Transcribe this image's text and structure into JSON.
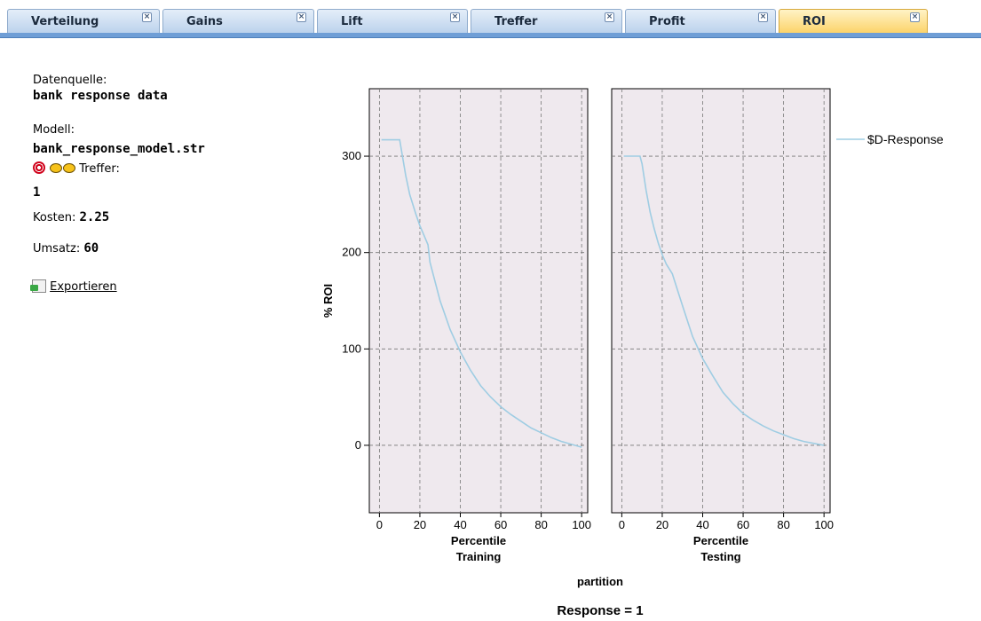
{
  "tabs": [
    {
      "label": "Verteilung",
      "active": false
    },
    {
      "label": "Gains",
      "active": false
    },
    {
      "label": "Lift",
      "active": false
    },
    {
      "label": "Treffer",
      "active": false
    },
    {
      "label": "Profit",
      "active": false
    },
    {
      "label": "ROI",
      "active": true
    }
  ],
  "tab_close_glyph": "×",
  "info": {
    "source_label": "Datenquelle:",
    "source_value": "bank response data",
    "model_label": "Modell:",
    "model_value": "bank_response_model.str",
    "hit_label": "Treffer:",
    "hit_value": "1",
    "cost_label": "Kosten:",
    "cost_value": "2.25",
    "revenue_label": "Umsatz:",
    "revenue_value": "60",
    "export_label": "Exportieren"
  },
  "icons": {
    "target": "target-icon",
    "glasses": "glasses-icon",
    "export": "export-icon"
  },
  "colors": {
    "line": "#9fcde3",
    "plot_bg": "#efe9ee",
    "tab_active": "#fcd36a",
    "tab_inactive": "#bcd2ec"
  },
  "chart_data": {
    "type": "line",
    "ylabel": "% ROI",
    "ylim": [
      -70,
      370
    ],
    "yticks": [
      0,
      100,
      200,
      300
    ],
    "xlim": [
      -5,
      103
    ],
    "xticks": [
      0,
      20,
      40,
      60,
      80,
      100
    ],
    "grid": true,
    "legend_position": "right",
    "xaxis_group_label": "partition",
    "footer": "Response = 1",
    "series_name": "$D-Response",
    "panels": [
      {
        "name": "Training",
        "xlabel": "Percentile",
        "x": [
          1,
          5,
          10,
          11,
          13,
          15,
          18,
          20,
          22,
          24,
          25,
          30,
          35,
          40,
          45,
          50,
          55,
          60,
          65,
          70,
          75,
          80,
          85,
          90,
          95,
          100
        ],
        "y": [
          317,
          317,
          317,
          305,
          280,
          260,
          240,
          228,
          218,
          208,
          190,
          150,
          120,
          97,
          78,
          62,
          50,
          40,
          32,
          25,
          18,
          13,
          8,
          4,
          1,
          -2
        ]
      },
      {
        "name": "Testing",
        "xlabel": "Percentile",
        "x": [
          1,
          5,
          9,
          10,
          12,
          14,
          16,
          18,
          20,
          22,
          25,
          30,
          35,
          40,
          45,
          50,
          55,
          60,
          65,
          70,
          75,
          80,
          85,
          90,
          95,
          100
        ],
        "y": [
          300,
          300,
          300,
          292,
          265,
          242,
          225,
          210,
          198,
          188,
          178,
          145,
          113,
          90,
          72,
          55,
          43,
          33,
          26,
          20,
          15,
          11,
          7,
          4,
          2,
          0
        ]
      }
    ]
  }
}
